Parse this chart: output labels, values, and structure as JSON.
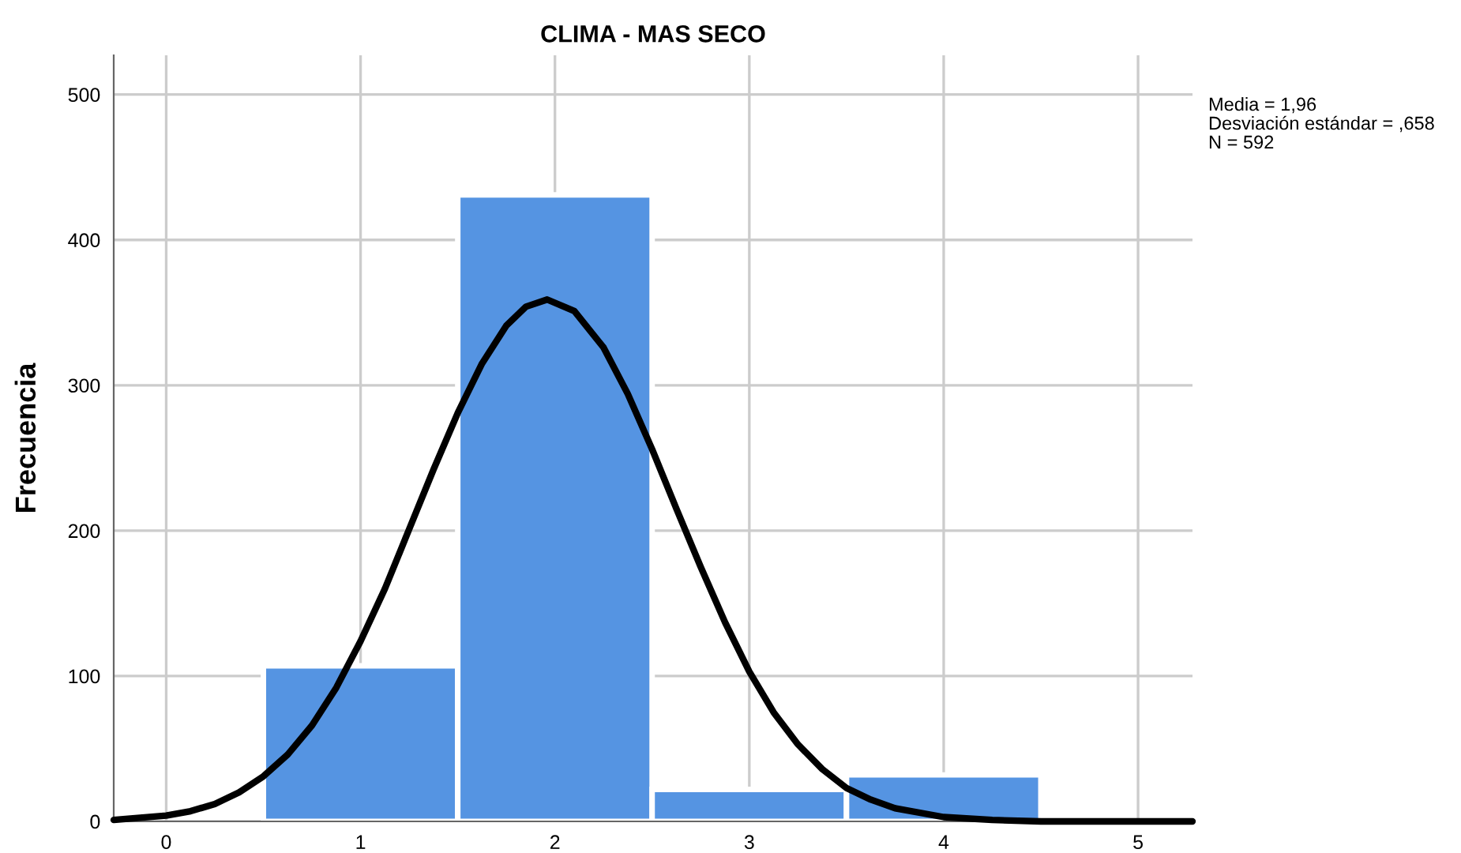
{
  "chart_data": {
    "type": "histogram",
    "title": "CLIMA - MAS SECO",
    "ylabel": "Frecuencia",
    "series": [
      {
        "color": "#5594e2",
        "bins": [
          0.5,
          1.5,
          2.5,
          3.5,
          4.5
        ],
        "values": [
          107,
          431,
          22,
          32
        ]
      },
      {
        "type": "line",
        "color": "#000000",
        "x": [
          -0.27,
          0,
          0.125,
          0.25,
          0.375,
          0.5,
          0.625,
          0.75,
          0.875,
          1,
          1.125,
          1.25,
          1.375,
          1.5,
          1.625,
          1.75,
          1.85,
          1.96,
          2.1,
          2.25,
          2.375,
          2.5,
          2.625,
          2.75,
          2.875,
          3,
          3.125,
          3.25,
          3.375,
          3.5,
          3.625,
          3.75,
          4,
          4.25,
          4.5,
          5,
          5.28
        ],
        "values": [
          1,
          4,
          7,
          12,
          20,
          31,
          46,
          66,
          92,
          124,
          160,
          201,
          242,
          281,
          315,
          341,
          354,
          359,
          351,
          326,
          294,
          256,
          215,
          175,
          137,
          103,
          75,
          53,
          36,
          23,
          15,
          9,
          3,
          1,
          0,
          0,
          0
        ]
      }
    ],
    "annotations": [
      "Media = 1,96",
      "Desviación estándar = ,658",
      "N = 592"
    ],
    "xlim": [
      -0.27,
      5.28
    ],
    "ylim": [
      0,
      527
    ],
    "xticks": [
      0,
      1,
      2,
      3,
      4,
      5
    ],
    "yticks": [
      0,
      100,
      200,
      300,
      400,
      500
    ],
    "grid": true,
    "legend": false,
    "line_style": "solid",
    "marker": "none"
  }
}
